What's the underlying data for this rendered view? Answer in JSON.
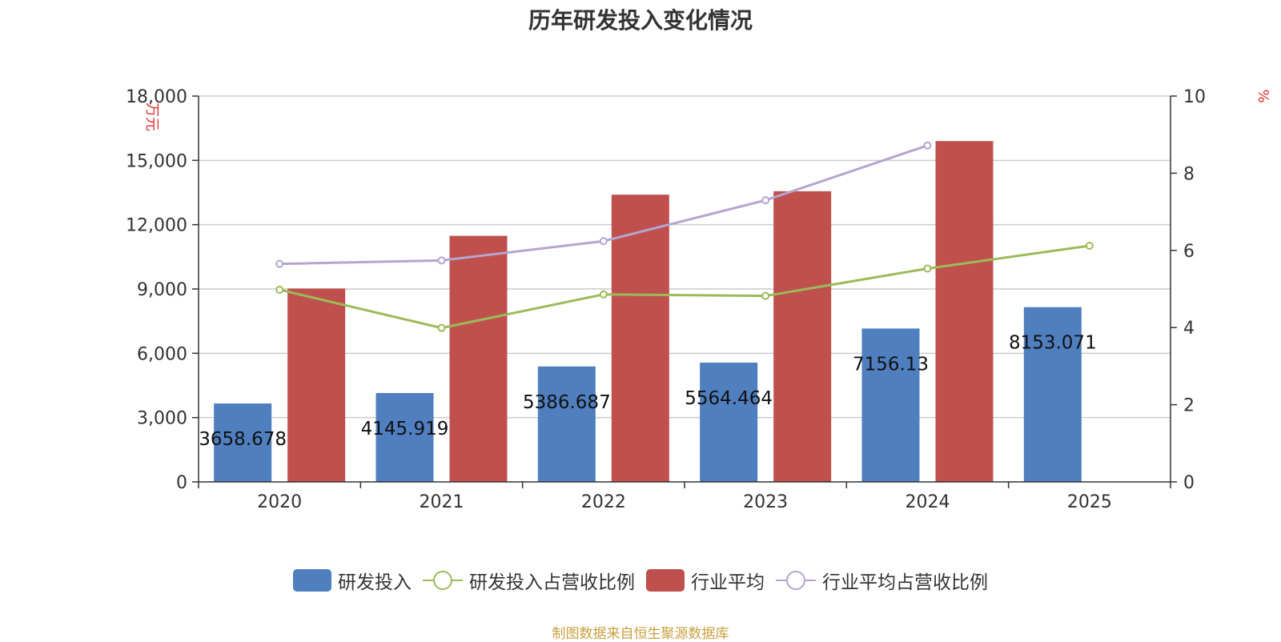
{
  "chart_data": {
    "type": "bar",
    "title": "历年研发投入变化情况",
    "categories": [
      "2020",
      "2021",
      "2022",
      "2023",
      "2024",
      "2025"
    ],
    "y_left": {
      "label": "万元",
      "ylim": [
        0,
        18000
      ],
      "ticks": [
        0,
        3000,
        6000,
        9000,
        12000,
        15000,
        18000
      ],
      "tick_labels": [
        "0",
        "3,000",
        "6,000",
        "9,000",
        "12,000",
        "15,000",
        "18,000"
      ]
    },
    "y_right": {
      "label": "%",
      "ylim": [
        0,
        10
      ],
      "ticks": [
        0,
        2,
        4,
        6,
        8,
        10
      ],
      "tick_labels": [
        "0",
        "2",
        "4",
        "6",
        "8",
        "10"
      ]
    },
    "grid": true,
    "legend_position": "bottom",
    "series": [
      {
        "name": "研发投入",
        "type": "bar",
        "axis": "left",
        "color": "#4f7fbf",
        "values": [
          3658.678,
          4145.919,
          5386.687,
          5564.464,
          7156.13,
          8153.071
        ],
        "labels": [
          "3658.678",
          "4145.919",
          "5386.687",
          "5564.464",
          "7156.13",
          "8153.071"
        ]
      },
      {
        "name": "研发投入占营收比例",
        "type": "line",
        "axis": "right",
        "color": "#9bbb59",
        "values": [
          4.98,
          3.99,
          4.86,
          4.82,
          5.53,
          6.12
        ]
      },
      {
        "name": "行业平均",
        "type": "bar",
        "axis": "left",
        "color": "#c0504d",
        "values": [
          9020,
          11480,
          13400,
          13560,
          15900,
          null
        ]
      },
      {
        "name": "行业平均占营收比例",
        "type": "line",
        "axis": "right",
        "color": "#b5a5cf",
        "values": [
          5.65,
          5.74,
          6.24,
          7.3,
          8.72,
          null
        ]
      }
    ]
  },
  "source": "制图数据来自恒生聚源数据库"
}
